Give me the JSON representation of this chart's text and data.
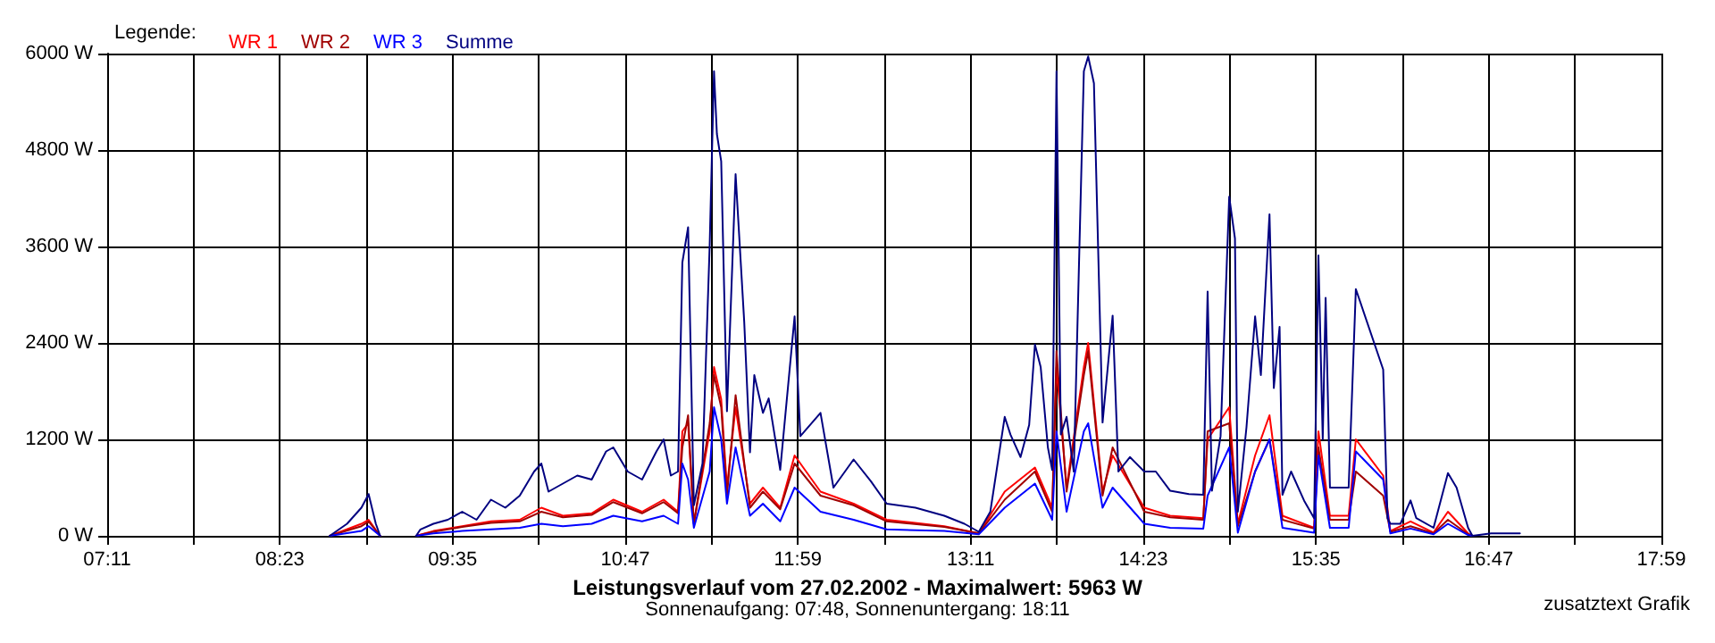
{
  "chart_data": {
    "type": "line",
    "title": "Leistungsverlauf vom 27.02.2002 - Maximalwert: 5963 W",
    "subtitle": "Sonnenaufgang: 07:48, Sonnenuntergang: 18:11",
    "legend_title": "Legende:",
    "annotations": [
      "zusatztext Grafik"
    ],
    "xlim": [
      7.1833,
      17.9833
    ],
    "xticks": [
      {
        "value": 7.1833,
        "label": "07:11"
      },
      {
        "value": 7.7833,
        "label": null
      },
      {
        "value": 8.3833,
        "label": "08:23"
      },
      {
        "value": 8.9833,
        "label": null
      },
      {
        "value": 9.5833,
        "label": "09:35"
      },
      {
        "value": 10.1833,
        "label": null
      },
      {
        "value": 10.7833,
        "label": "10:47"
      },
      {
        "value": 11.3833,
        "label": null
      },
      {
        "value": 11.9833,
        "label": "11:59"
      },
      {
        "value": 12.5833,
        "label": null
      },
      {
        "value": 13.1833,
        "label": "13:11"
      },
      {
        "value": 13.7833,
        "label": null
      },
      {
        "value": 14.3833,
        "label": "14:23"
      },
      {
        "value": 14.9833,
        "label": null
      },
      {
        "value": 15.5833,
        "label": "15:35"
      },
      {
        "value": 16.1833,
        "label": null
      },
      {
        "value": 16.7833,
        "label": "16:47"
      },
      {
        "value": 17.3833,
        "label": null
      },
      {
        "value": 17.9833,
        "label": "17:59"
      }
    ],
    "ylim": [
      0,
      6000
    ],
    "yticks": [
      {
        "value": 0,
        "label": "0 W"
      },
      {
        "value": 1200,
        "label": "1200 W"
      },
      {
        "value": 2400,
        "label": "2400 W"
      },
      {
        "value": 3600,
        "label": "3600 W"
      },
      {
        "value": 4800,
        "label": "4800 W"
      },
      {
        "value": 6000,
        "label": "6000 W"
      }
    ],
    "grid": true,
    "legend": "top left",
    "marker": "none",
    "line_style": "solid",
    "series": [
      {
        "name": "WR 1",
        "color": "#ff0000",
        "x": [
          8.73,
          8.95,
          9.0,
          9.08,
          9.2,
          9.33,
          9.45,
          9.65,
          9.85,
          10.05,
          10.2,
          10.35,
          10.55,
          10.7,
          10.9,
          11.05,
          11.15,
          11.18,
          11.22,
          11.26,
          11.37,
          11.4,
          11.45,
          11.49,
          11.55,
          11.65,
          11.74,
          11.86,
          11.96,
          12.14,
          12.37,
          12.6,
          13.0,
          13.24,
          13.42,
          13.63,
          13.75,
          13.78,
          13.85,
          13.97,
          14.0,
          14.1,
          14.17,
          14.39,
          14.57,
          14.8,
          14.83,
          14.98,
          15.04,
          15.16,
          15.26,
          15.35,
          15.57,
          15.6,
          15.68,
          15.81,
          15.86,
          16.05,
          16.1,
          16.24,
          16.4,
          16.5,
          16.64,
          16.67
        ],
        "values": [
          0,
          150,
          200,
          0,
          null,
          0,
          60,
          120,
          180,
          200,
          350,
          250,
          280,
          450,
          300,
          450,
          300,
          1300,
          1400,
          150,
          1300,
          2100,
          1700,
          600,
          1600,
          400,
          600,
          350,
          1000,
          550,
          400,
          200,
          120,
          30,
          550,
          850,
          350,
          2100,
          600,
          2100,
          2400,
          550,
          1000,
          350,
          250,
          220,
          1200,
          1600,
          150,
          1000,
          1500,
          250,
          100,
          1300,
          250,
          250,
          1200,
          750,
          60,
          180,
          40,
          300,
          30,
          0
        ]
      },
      {
        "name": "WR 2",
        "color": "#a00000",
        "x": [
          8.73,
          8.95,
          9.0,
          9.08,
          9.2,
          9.33,
          9.45,
          9.65,
          9.85,
          10.05,
          10.2,
          10.35,
          10.55,
          10.7,
          10.9,
          11.05,
          11.15,
          11.18,
          11.22,
          11.26,
          11.37,
          11.4,
          11.45,
          11.49,
          11.55,
          11.65,
          11.74,
          11.86,
          11.96,
          12.14,
          12.37,
          12.6,
          13.0,
          13.24,
          13.42,
          13.63,
          13.75,
          13.78,
          13.85,
          13.97,
          14.0,
          14.1,
          14.17,
          14.39,
          14.57,
          14.8,
          14.83,
          14.98,
          15.04,
          15.16,
          15.26,
          15.35,
          15.57,
          15.6,
          15.68,
          15.81,
          15.86,
          16.05,
          16.1,
          16.24,
          16.4,
          16.5,
          16.64,
          16.67
        ],
        "values": [
          0,
          120,
          180,
          0,
          null,
          0,
          50,
          110,
          160,
          180,
          300,
          230,
          260,
          420,
          280,
          420,
          280,
          1100,
          1500,
          150,
          1400,
          2000,
          1600,
          500,
          1750,
          350,
          550,
          330,
          900,
          500,
          380,
          180,
          110,
          30,
          450,
          800,
          300,
          2300,
          550,
          2000,
          2300,
          500,
          1100,
          300,
          230,
          200,
          1300,
          1400,
          120,
          800,
          1200,
          200,
          90,
          1100,
          200,
          200,
          800,
          500,
          50,
          120,
          30,
          200,
          20,
          0
        ]
      },
      {
        "name": "WR 3",
        "color": "#0000ff",
        "x": [
          8.73,
          8.95,
          9.0,
          9.08,
          9.2,
          9.33,
          9.45,
          9.65,
          9.85,
          10.05,
          10.2,
          10.35,
          10.55,
          10.7,
          10.9,
          11.05,
          11.15,
          11.18,
          11.22,
          11.26,
          11.37,
          11.4,
          11.45,
          11.49,
          11.55,
          11.65,
          11.74,
          11.86,
          11.96,
          12.14,
          12.37,
          12.6,
          13.0,
          13.24,
          13.42,
          13.63,
          13.75,
          13.78,
          13.85,
          13.97,
          14.0,
          14.1,
          14.17,
          14.39,
          14.57,
          14.8,
          14.83,
          14.98,
          15.04,
          15.16,
          15.26,
          15.35,
          15.57,
          15.6,
          15.68,
          15.81,
          15.86,
          16.05,
          16.1,
          16.24,
          16.4,
          16.5,
          16.64,
          16.67
        ],
        "values": [
          0,
          60,
          120,
          0,
          null,
          0,
          30,
          60,
          80,
          100,
          150,
          120,
          150,
          250,
          180,
          250,
          150,
          900,
          700,
          100,
          800,
          1600,
          1200,
          400,
          1100,
          250,
          400,
          180,
          600,
          300,
          200,
          80,
          60,
          20,
          350,
          650,
          200,
          1300,
          300,
          1300,
          1400,
          350,
          600,
          150,
          100,
          90,
          500,
          1100,
          40,
          800,
          1200,
          100,
          40,
          1000,
          100,
          100,
          1050,
          700,
          30,
          90,
          20,
          150,
          10,
          0
        ]
      },
      {
        "name": "Summe",
        "color": "#000080",
        "x": [
          8.73,
          8.85,
          8.95,
          9.0,
          9.05,
          9.08,
          9.2,
          9.33,
          9.36,
          9.45,
          9.55,
          9.65,
          9.75,
          9.85,
          9.95,
          10.05,
          10.15,
          10.2,
          10.25,
          10.35,
          10.45,
          10.55,
          10.65,
          10.7,
          10.8,
          10.9,
          11.0,
          11.05,
          11.1,
          11.15,
          11.18,
          11.22,
          11.26,
          11.32,
          11.37,
          11.4,
          11.42,
          11.45,
          11.49,
          11.55,
          11.61,
          11.65,
          11.68,
          11.74,
          11.78,
          11.86,
          11.96,
          12.0,
          12.14,
          12.23,
          12.37,
          12.49,
          12.6,
          12.8,
          13.0,
          13.14,
          13.24,
          13.32,
          13.42,
          13.46,
          13.53,
          13.59,
          13.63,
          13.67,
          13.72,
          13.75,
          13.78,
          13.81,
          13.85,
          13.9,
          13.97,
          14.0,
          14.04,
          14.1,
          14.17,
          14.21,
          14.29,
          14.39,
          14.47,
          14.57,
          14.7,
          14.8,
          14.83,
          14.86,
          14.92,
          14.98,
          15.02,
          15.04,
          15.1,
          15.16,
          15.2,
          15.26,
          15.29,
          15.33,
          15.35,
          15.41,
          15.5,
          15.57,
          15.6,
          15.63,
          15.65,
          15.68,
          15.81,
          15.86,
          16.05,
          16.08,
          16.1,
          16.17,
          16.24,
          16.28,
          16.4,
          16.5,
          16.56,
          16.64,
          16.67,
          16.8,
          17.0
        ],
        "values": [
          0,
          150,
          350,
          520,
          150,
          0,
          null,
          0,
          80,
          150,
          200,
          300,
          200,
          450,
          350,
          500,
          800,
          900,
          550,
          650,
          750,
          700,
          1050,
          1100,
          800,
          700,
          1050,
          1200,
          750,
          800,
          3400,
          3840,
          380,
          900,
          3620,
          5780,
          5000,
          4660,
          1550,
          4500,
          2660,
          1040,
          2000,
          1530,
          1710,
          820,
          2730,
          1240,
          1530,
          600,
          950,
          680,
          400,
          350,
          250,
          150,
          50,
          300,
          1480,
          1260,
          980,
          1380,
          2380,
          2100,
          1100,
          820,
          5780,
          1260,
          1480,
          800,
          5780,
          5963,
          5630,
          1410,
          2740,
          800,
          980,
          800,
          800,
          560,
          520,
          510,
          3040,
          560,
          1240,
          4220,
          3700,
          300,
          1350,
          2730,
          2000,
          4000,
          1840,
          2600,
          510,
          800,
          440,
          220,
          3490,
          1200,
          2960,
          600,
          600,
          3070,
          2070,
          220,
          150,
          150,
          440,
          220,
          100,
          780,
          600,
          100,
          0,
          30,
          30
        ]
      }
    ]
  }
}
